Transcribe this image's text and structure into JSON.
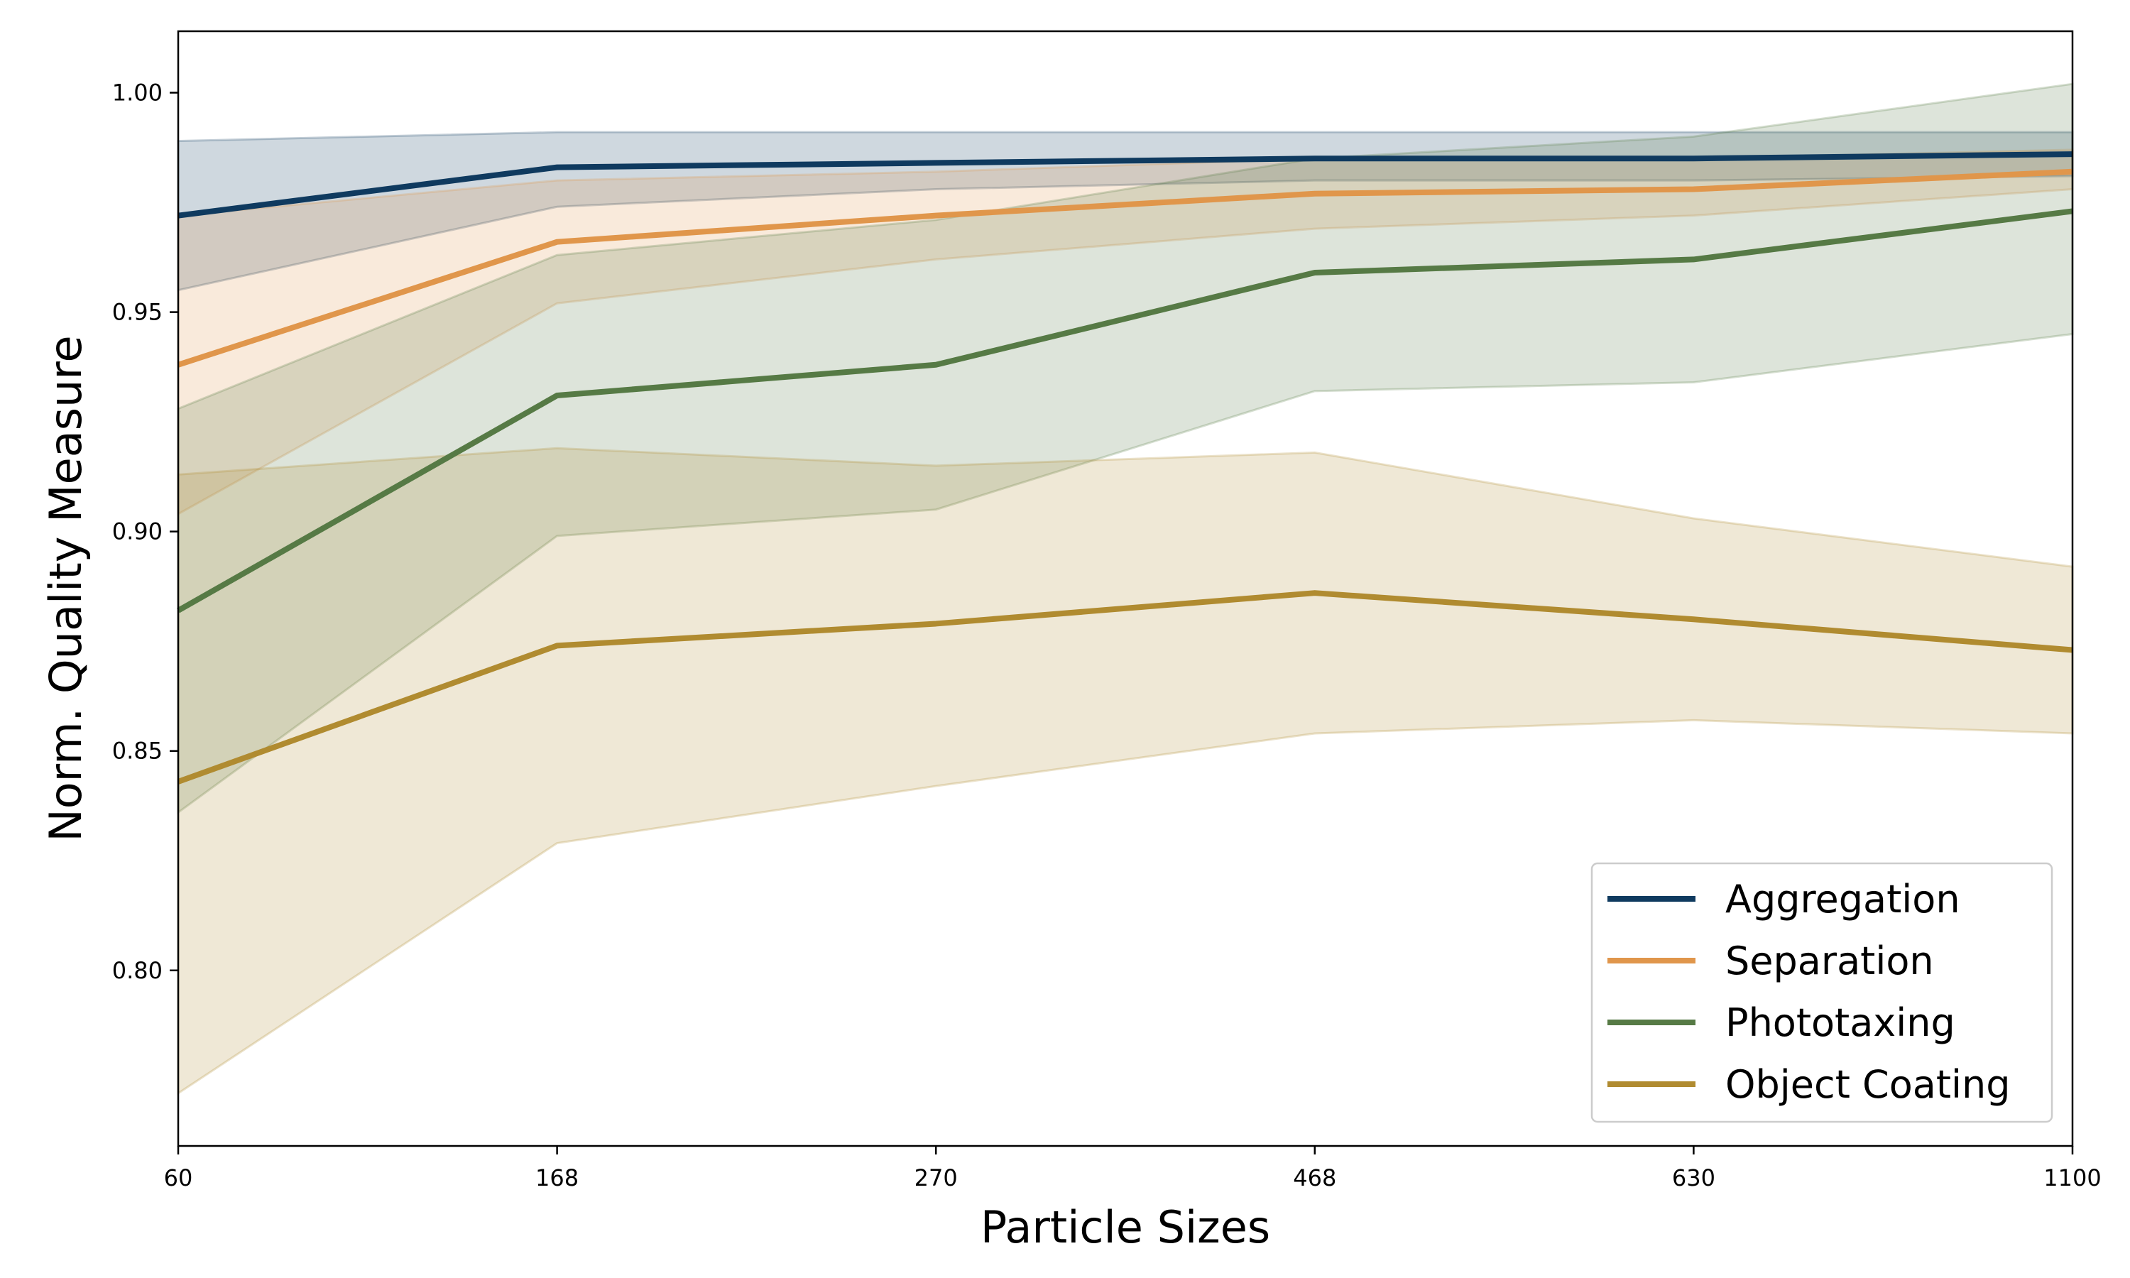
{
  "chart_data": {
    "type": "line",
    "title": "",
    "xlabel": "Particle Sizes",
    "ylabel": "Norm. Quality Measure",
    "x": [
      "60",
      "168",
      "270",
      "468",
      "630",
      "1100"
    ],
    "ylim": [
      0.76,
      1.014
    ],
    "yticks": [
      "0.80",
      "0.85",
      "0.90",
      "0.95",
      "1.00"
    ],
    "grid": false,
    "legend_position": "lower-right",
    "series": [
      {
        "name": "Aggregation",
        "color": "#0f3a5f",
        "values": [
          0.972,
          0.983,
          0.984,
          0.985,
          0.985,
          0.986
        ],
        "lower": [
          0.955,
          0.974,
          0.978,
          0.98,
          0.98,
          0.981
        ],
        "upper": [
          0.989,
          0.991,
          0.991,
          0.991,
          0.991,
          0.991
        ]
      },
      {
        "name": "Separation",
        "color": "#e0964b",
        "values": [
          0.938,
          0.966,
          0.972,
          0.977,
          0.978,
          0.982
        ],
        "lower": [
          0.904,
          0.952,
          0.962,
          0.969,
          0.972,
          0.978
        ],
        "upper": [
          0.972,
          0.98,
          0.982,
          0.985,
          0.985,
          0.987
        ]
      },
      {
        "name": "Phototaxing",
        "color": "#567a45",
        "values": [
          0.882,
          0.931,
          0.938,
          0.959,
          0.962,
          0.973
        ],
        "lower": [
          0.836,
          0.899,
          0.905,
          0.932,
          0.934,
          0.945
        ],
        "upper": [
          0.928,
          0.963,
          0.971,
          0.985,
          0.99,
          1.002
        ]
      },
      {
        "name": "Object Coating",
        "color": "#b08b30",
        "values": [
          0.843,
          0.874,
          0.879,
          0.886,
          0.88,
          0.873
        ],
        "lower": [
          0.772,
          0.829,
          0.842,
          0.854,
          0.857,
          0.854
        ],
        "upper": [
          0.913,
          0.919,
          0.915,
          0.918,
          0.903,
          0.892
        ]
      }
    ]
  }
}
